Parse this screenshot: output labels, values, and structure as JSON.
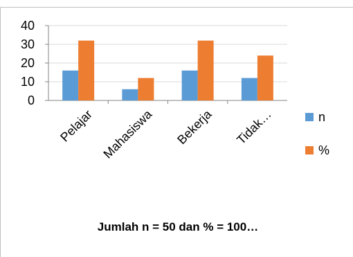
{
  "chart_data": {
    "type": "bar",
    "categories": [
      "Pelajar",
      "Mahasiswa",
      "Bekerja",
      "Tidak…"
    ],
    "series": [
      {
        "name": "n",
        "values": [
          16,
          6,
          16,
          12
        ],
        "color": "#5B9BD5"
      },
      {
        "name": "%",
        "values": [
          32,
          12,
          32,
          24
        ],
        "color": "#ED7D31"
      }
    ],
    "title": "Jumlah n = 50 dan % = 100…",
    "xlabel": "",
    "ylabel": "",
    "ylim": [
      0,
      40
    ],
    "yticks": [
      "0",
      "10",
      "20",
      "30",
      "40"
    ],
    "grid": true,
    "legend_position": "right"
  }
}
